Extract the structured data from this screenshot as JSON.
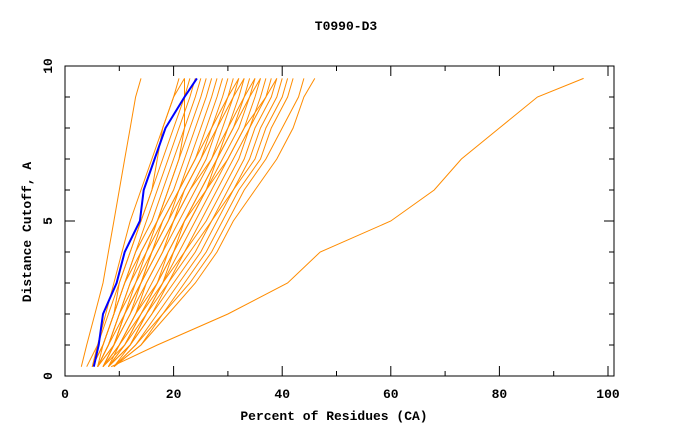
{
  "chart_data": {
    "type": "line",
    "title": "T0990-D3",
    "xlabel": "Percent of Residues (CA)",
    "ylabel": "Distance Cutoff, A",
    "xlim": [
      0,
      102
    ],
    "ylim": [
      0,
      10
    ],
    "x_ticks": [
      "0",
      "20",
      "40",
      "60",
      "80",
      "100"
    ],
    "y_ticks": [
      "0",
      "5",
      "10"
    ],
    "grid": false,
    "colors": {
      "highlight": "#0000ff",
      "others": "#ff8c00"
    },
    "y_levels": [
      0.3,
      1,
      2,
      3,
      4,
      5,
      6,
      7,
      8,
      9,
      9.6
    ],
    "highlight_series": {
      "x": [
        5.3,
        6.2,
        7,
        9.5,
        11,
        13.8,
        14.5,
        16.5,
        18.5,
        22,
        24.3
      ]
    },
    "series": [
      {
        "x": [
          3,
          4,
          5.5,
          7,
          8,
          9,
          10,
          11,
          12,
          13,
          14
        ]
      },
      {
        "x": [
          8.5,
          17,
          30,
          41,
          47,
          60,
          68,
          73,
          80,
          87,
          95.5
        ]
      },
      {
        "x": [
          4,
          6,
          8,
          10,
          12,
          14,
          16,
          18,
          20,
          22,
          23
        ]
      },
      {
        "x": [
          5,
          7,
          9,
          11,
          14,
          17,
          19,
          21,
          22,
          22,
          22
        ]
      },
      {
        "x": [
          5,
          6,
          7.5,
          9,
          10.5,
          12,
          14,
          16,
          18,
          20,
          21
        ]
      },
      {
        "x": [
          5,
          7,
          9,
          10,
          12,
          14,
          16,
          17,
          18,
          20,
          22
        ]
      },
      {
        "x": [
          6,
          7,
          9,
          11,
          13,
          15,
          17,
          19,
          21,
          23,
          24
        ]
      },
      {
        "x": [
          5,
          7,
          9,
          11,
          13,
          16,
          18,
          20,
          22,
          24,
          25
        ]
      },
      {
        "x": [
          6,
          8,
          10,
          12,
          14,
          17,
          19,
          21,
          23,
          25,
          26
        ]
      },
      {
        "x": [
          6,
          8,
          10,
          13,
          15,
          17,
          20,
          22,
          24,
          26,
          27
        ]
      },
      {
        "x": [
          6,
          8,
          11,
          13,
          16,
          18,
          21,
          23,
          25,
          27,
          28
        ]
      },
      {
        "x": [
          7,
          9,
          11,
          14,
          16,
          19,
          21,
          24,
          26,
          28,
          29
        ]
      },
      {
        "x": [
          6,
          9,
          12,
          14,
          17,
          20,
          22,
          25,
          27,
          29,
          30
        ]
      },
      {
        "x": [
          7,
          9,
          12,
          15,
          18,
          20,
          23,
          26,
          28,
          30,
          31
        ]
      },
      {
        "x": [
          7,
          10,
          13,
          15,
          18,
          21,
          24,
          27,
          29,
          31,
          32
        ]
      },
      {
        "x": [
          7,
          10,
          13,
          16,
          19,
          22,
          25,
          28,
          30,
          32,
          33
        ]
      },
      {
        "x": [
          8,
          10,
          13,
          17,
          20,
          23,
          26,
          28,
          31,
          33,
          34
        ]
      },
      {
        "x": [
          7,
          10,
          14,
          17,
          20,
          23,
          26,
          29,
          32,
          34,
          35
        ]
      },
      {
        "x": [
          8,
          11,
          14,
          18,
          21,
          24,
          27,
          30,
          33,
          35,
          36
        ]
      },
      {
        "x": [
          8,
          11,
          15,
          18,
          22,
          25,
          28,
          31,
          34,
          36,
          37
        ]
      },
      {
        "x": [
          8,
          12,
          15,
          19,
          22,
          26,
          29,
          32,
          34,
          37,
          38
        ]
      },
      {
        "x": [
          8,
          12,
          16,
          19,
          23,
          27,
          30,
          33,
          35,
          38,
          39
        ]
      },
      {
        "x": [
          9,
          12,
          16,
          20,
          24,
          27,
          31,
          34,
          36,
          39,
          40
        ]
      },
      {
        "x": [
          9,
          13,
          17,
          21,
          25,
          28,
          31,
          35,
          37,
          40,
          41
        ]
      },
      {
        "x": [
          9,
          13,
          18,
          22,
          26,
          29,
          32,
          36,
          38,
          41,
          42
        ]
      },
      {
        "x": [
          9,
          14,
          18,
          23,
          27,
          30,
          33,
          37,
          40,
          43,
          44
        ]
      },
      {
        "x": [
          9,
          14,
          19,
          24,
          28,
          31,
          35,
          39,
          42,
          44,
          46
        ]
      },
      {
        "x": [
          8,
          12,
          15,
          18,
          20,
          22,
          25,
          28,
          31,
          34,
          36
        ]
      },
      {
        "x": [
          7,
          11,
          14,
          17,
          19,
          22,
          26,
          30,
          33,
          37,
          39
        ]
      },
      {
        "x": [
          6,
          8,
          10,
          12,
          15,
          18,
          21,
          24,
          27,
          30,
          32
        ]
      },
      {
        "x": [
          7,
          9,
          11,
          14,
          17,
          20,
          23,
          27,
          30,
          33,
          35
        ]
      },
      {
        "x": [
          6,
          9,
          11,
          14,
          16,
          19,
          22,
          25,
          28,
          31,
          33
        ]
      }
    ]
  }
}
